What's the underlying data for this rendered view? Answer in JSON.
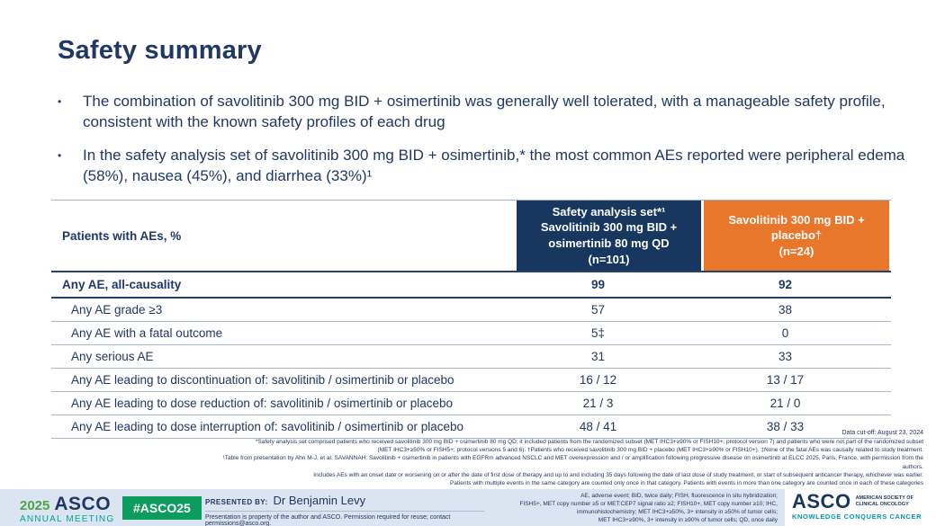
{
  "colors": {
    "navy_text": "#1f3864",
    "header_navy_bg": "#17375e",
    "header_orange_bg": "#e8772b",
    "footer_band": "#dbe4f1",
    "badge_green": "#0c9c5e",
    "logo_green": "#4fa546",
    "logo_teal": "#00a398",
    "tagline_teal": "#0097ac"
  },
  "slide": {
    "title": "Safety summary",
    "bullets": [
      "The combination of savolitinib 300 mg BID + osimertinib was generally well tolerated, with a manageable safety profile, consistent with the known safety profiles of each drug",
      "In the safety analysis set of savolitinib 300 mg BID + osimertinib,* the most common AEs reported were peripheral edema (58%), nausea (45%), and diarrhea (33%)¹"
    ]
  },
  "table": {
    "col1_header": "Patients with AEs, %",
    "col2_header": "Safety analysis set*¹\nSavolitinib 300 mg BID +\nosimertinib 80 mg QD\n(n=101)",
    "col3_header": "Savolitinib 300 mg BID +\nplacebo†\n(n=24)",
    "rows": [
      {
        "label": "Any AE, all-causality",
        "v1": "99",
        "v2": "92"
      },
      {
        "label": "Any AE grade ≥3",
        "v1": "57",
        "v2": "38"
      },
      {
        "label": "Any AE with a fatal outcome",
        "v1": "5‡",
        "v2": "0"
      },
      {
        "label": "Any serious AE",
        "v1": "31",
        "v2": "33"
      },
      {
        "label": "Any AE leading to discontinuation of: savolitinib / osimertinib or placebo",
        "v1": "16 / 12",
        "v2": "13 / 17"
      },
      {
        "label": "Any AE leading to dose reduction of: savolitinib / osimertinib or placebo",
        "v1": "21 / 3",
        "v2": "21 / 0"
      },
      {
        "label": "Any AE leading to dose interruption of: savolitinib / osimertinib or placebo",
        "v1": "48 / 41",
        "v2": "38 / 33"
      }
    ]
  },
  "footnotes": {
    "data_cutoff": "Data cut-off: August 23, 2024",
    "lines": [
      "*Safety analysis set comprised patients who received savolitinib 300 mg BID + osimertinib 80 mg QD; it included patients from the randomized subset (MET IHC3+≥90% or FISH10+; protocol version 7) and patients who were not part of the randomized subset",
      "(MET IHC3+≥50% or FISH5+; protocol versions 5 and 6). †Patients who received savolitinib 300 mg BID + placebo (MET IHC3+≥90% or FISH10+). ‡None of the fatal AEs was causally related to study treatment.",
      "¹Table from presentation by Ahn M-J, et al. SAVANNAH: Savolitinib + osimertinib in patients with EGFRm advanced NSCLC and MET overexpression and / or amplification following progressive disease on osimertinib at ELCC 2025, Paris, France, with permission from the authors.",
      "Includes AEs with an onset date or worsening on or after the date of first dose of therapy and up to and including 35 days following the date of last dose of study treatment, or start of subsequent anticancer therapy, whichever was earlier.",
      "Patients with multiple events in the same category are counted only once in that category. Patients with events in more than one category are counted once in each of these categories"
    ]
  },
  "footer": {
    "meeting_year": "2025",
    "meeting_asco": "ASCO",
    "meeting_annual": "ANNUAL MEETING",
    "hashtag": "#ASCO25",
    "presented_by_label": "PRESENTED BY:",
    "presenter": "Dr Benjamin Levy",
    "permission": "Presentation is property of the author and ASCO. Permission required for reuse; contact permissions@asco.org.",
    "abbreviations": [
      "AE, adverse event; BID, twice daily; FISH, fluorescence in situ hybridization;",
      "FISH5+, MET copy number ≥5 or MET:CEP7 signal ratio ≥2; FISH10+, MET copy number ≥10; IHC,",
      "immunohistochemistry; MET IHC3+≥50%, 3+ intensity in ≥50% of tumor cells;",
      "MET IHC3+≥90%, 3+ intensity in ≥90% of tumor cells; QD, once daily"
    ],
    "asco_logo": {
      "name": "ASCO",
      "society": "AMERICAN SOCIETY OF\nCLINICAL ONCOLOGY",
      "tagline": "KNOWLEDGE CONQUERS CANCER"
    }
  }
}
